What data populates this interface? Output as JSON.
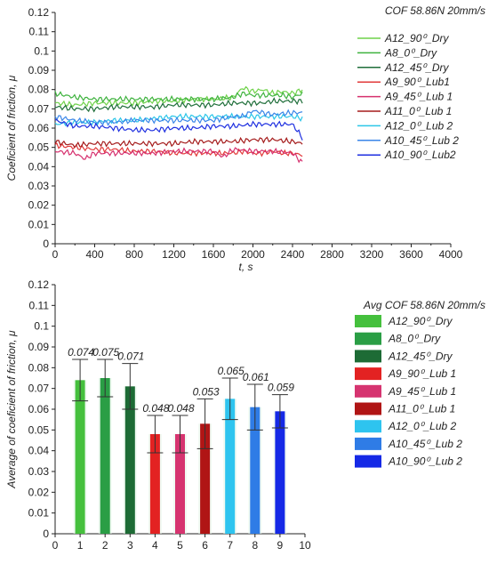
{
  "chart_data": [
    {
      "type": "line",
      "title": "COF 58.86N 20mm/s",
      "xlabel": "t, s",
      "ylabel": "Coeficient of friction, μ",
      "xlim": [
        0,
        4000
      ],
      "ylim": [
        0,
        0.12
      ],
      "x_ticks": [
        "0",
        "400",
        "800",
        "1200",
        "1600",
        "2000",
        "2400",
        "2800",
        "3200",
        "3600",
        "4000"
      ],
      "y_ticks": [
        "0",
        "0.01",
        "0.02",
        "0.03",
        "0.04",
        "0.05",
        "0.06",
        "0.07",
        "0.08",
        "0.09",
        "0.1",
        "0.11",
        "0.12"
      ],
      "grid": false,
      "legend_position": "top-right",
      "series": [
        {
          "name": "A12_90⁰_Dry",
          "color": "#6fd24a",
          "x": [
            0,
            200,
            400,
            600,
            800,
            1000,
            1200,
            1400,
            1600,
            1800,
            1900,
            2000,
            2100,
            2200,
            2300,
            2400,
            2500
          ],
          "values": [
            0.073,
            0.072,
            0.073,
            0.073,
            0.073,
            0.074,
            0.074,
            0.075,
            0.075,
            0.076,
            0.081,
            0.079,
            0.08,
            0.078,
            0.079,
            0.078,
            0.08
          ]
        },
        {
          "name": "A8_0⁰_Dry",
          "color": "#3fb33f",
          "x": [
            0,
            200,
            400,
            600,
            800,
            1000,
            1200,
            1400,
            1600,
            1800,
            1900,
            2000,
            2100,
            2200,
            2300,
            2400,
            2500
          ],
          "values": [
            0.078,
            0.076,
            0.075,
            0.075,
            0.075,
            0.075,
            0.075,
            0.075,
            0.075,
            0.076,
            0.078,
            0.077,
            0.077,
            0.077,
            0.077,
            0.076,
            0.078
          ]
        },
        {
          "name": "A12_45⁰_Dry",
          "color": "#1f6e3a",
          "x": [
            0,
            200,
            400,
            600,
            800,
            1000,
            1200,
            1400,
            1600,
            1800,
            1900,
            2000,
            2100,
            2200,
            2300,
            2400,
            2500
          ],
          "values": [
            0.071,
            0.07,
            0.07,
            0.071,
            0.071,
            0.071,
            0.072,
            0.072,
            0.072,
            0.073,
            0.073,
            0.073,
            0.073,
            0.074,
            0.074,
            0.074,
            0.074
          ]
        },
        {
          "name": "A9_90⁰_Lub1",
          "color": "#e23a3a",
          "x": [
            0,
            200,
            400,
            600,
            800,
            1000,
            1200,
            1400,
            1600,
            1800,
            1900,
            2000,
            2100,
            2200,
            2300,
            2400,
            2500
          ],
          "values": [
            0.051,
            0.05,
            0.049,
            0.049,
            0.048,
            0.048,
            0.047,
            0.047,
            0.047,
            0.047,
            0.048,
            0.047,
            0.047,
            0.048,
            0.047,
            0.047,
            0.046
          ]
        },
        {
          "name": "A9_45⁰_Lub 1",
          "color": "#d6306e",
          "x": [
            0,
            200,
            300,
            400,
            600,
            800,
            1000,
            1200,
            1400,
            1600,
            1700,
            1800,
            2000,
            2200,
            2400,
            2500
          ],
          "values": [
            0.048,
            0.047,
            0.044,
            0.047,
            0.047,
            0.047,
            0.047,
            0.048,
            0.048,
            0.048,
            0.045,
            0.049,
            0.048,
            0.048,
            0.047,
            0.042
          ]
        },
        {
          "name": "A11_0⁰_Lub 1",
          "color": "#a51c1c",
          "x": [
            0,
            200,
            400,
            600,
            800,
            1000,
            1200,
            1400,
            1600,
            1800,
            2000,
            2200,
            2400,
            2500
          ],
          "values": [
            0.053,
            0.051,
            0.052,
            0.052,
            0.052,
            0.052,
            0.052,
            0.053,
            0.053,
            0.053,
            0.054,
            0.054,
            0.053,
            0.052
          ]
        },
        {
          "name": "A12_0⁰_Lub 2",
          "color": "#2cc6e8",
          "x": [
            0,
            200,
            400,
            600,
            800,
            1000,
            1200,
            1400,
            1600,
            1800,
            2000,
            2200,
            2400,
            2500
          ],
          "values": [
            0.062,
            0.063,
            0.063,
            0.064,
            0.064,
            0.065,
            0.066,
            0.066,
            0.066,
            0.066,
            0.066,
            0.066,
            0.066,
            0.065
          ]
        },
        {
          "name": "A10_45⁰_Lub 2",
          "color": "#3a86e8",
          "x": [
            0,
            200,
            400,
            600,
            800,
            1000,
            1200,
            1400,
            1600,
            1800,
            1900,
            2000,
            2200,
            2400,
            2500
          ],
          "values": [
            0.066,
            0.064,
            0.063,
            0.063,
            0.064,
            0.064,
            0.064,
            0.064,
            0.064,
            0.066,
            0.066,
            0.069,
            0.067,
            0.068,
            0.068
          ]
        },
        {
          "name": "A10_90⁰_Lub2",
          "color": "#1e2fe0",
          "x": [
            0,
            200,
            400,
            600,
            800,
            1000,
            1200,
            1400,
            1600,
            1800,
            2000,
            2200,
            2400,
            2500
          ],
          "values": [
            0.064,
            0.061,
            0.061,
            0.06,
            0.059,
            0.059,
            0.06,
            0.06,
            0.061,
            0.061,
            0.062,
            0.062,
            0.062,
            0.055
          ]
        }
      ]
    },
    {
      "type": "bar",
      "title": "Avg COF 58.86N 20mm/s",
      "xlabel": "",
      "ylabel": "Average of coeficient of friction, μ",
      "xlim": [
        0,
        10
      ],
      "ylim": [
        0,
        0.12
      ],
      "x_ticks": [
        "0",
        "1",
        "2",
        "3",
        "4",
        "5",
        "6",
        "7",
        "8",
        "9",
        "10"
      ],
      "y_ticks": [
        "0",
        "0.01",
        "0.02",
        "0.03",
        "0.04",
        "0.05",
        "0.06",
        "0.07",
        "0.08",
        "0.09",
        "0.1",
        "0.11",
        "0.12"
      ],
      "grid": false,
      "legend_position": "top-right",
      "bars": [
        {
          "name": "A12_90⁰_Dry",
          "x": 1,
          "value": 0.074,
          "label": "0.074",
          "err": 0.01,
          "color": "#45c03d"
        },
        {
          "name": "A8_0⁰_Dry",
          "x": 2,
          "value": 0.075,
          "label": "0.075",
          "err": 0.009,
          "color": "#2a9e45"
        },
        {
          "name": "A12_45⁰_Dry",
          "x": 3,
          "value": 0.071,
          "label": "0.071",
          "err": 0.011,
          "color": "#1d6b35"
        },
        {
          "name": "A9_90⁰_Lub 1",
          "x": 4,
          "value": 0.048,
          "label": "0.048",
          "err": 0.009,
          "color": "#e32222"
        },
        {
          "name": "A9_45⁰_Lub 1",
          "x": 5,
          "value": 0.048,
          "label": "0.048",
          "err": 0.009,
          "color": "#d63470"
        },
        {
          "name": "A11_0⁰_Lub 1",
          "x": 6,
          "value": 0.053,
          "label": "0.053",
          "err": 0.012,
          "color": "#b01515"
        },
        {
          "name": "A12_0⁰_Lub 2",
          "x": 7,
          "value": 0.065,
          "label": "0.065",
          "err": 0.01,
          "color": "#2ec4ef"
        },
        {
          "name": "A10_45⁰_Lub 2",
          "x": 8,
          "value": 0.061,
          "label": "0.061",
          "err": 0.011,
          "color": "#2f7ce6"
        },
        {
          "name": "A10_90⁰_Lub 2",
          "x": 9,
          "value": 0.059,
          "label": "0.059",
          "err": 0.008,
          "color": "#1529e6"
        }
      ]
    }
  ]
}
